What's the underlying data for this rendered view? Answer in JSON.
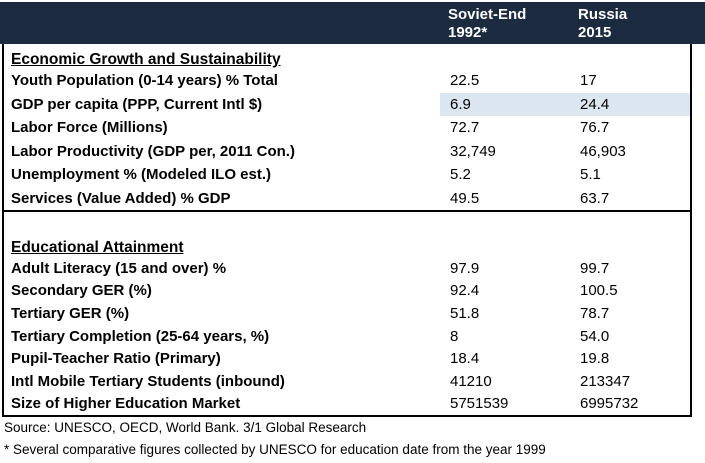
{
  "chart_data": {
    "type": "table",
    "col_headers": [
      {
        "line1": "Soviet-End",
        "line2": "1992*"
      },
      {
        "line1": "Russia",
        "line2": "2015"
      }
    ],
    "sections": [
      {
        "title": "Economic Growth and Sustainability",
        "rows": [
          {
            "label": "Youth Population (0-14 years) % Total",
            "soviet_1992": "22.5",
            "russia_2015": "17"
          },
          {
            "label": "GDP per capita (PPP, Current Intl $)",
            "soviet_1992": "6.9",
            "russia_2015": "24.4",
            "highlighted": true
          },
          {
            "label": "Labor Force (Millions)",
            "soviet_1992": "72.7",
            "russia_2015": "76.7"
          },
          {
            "label": "Labor Productivity (GDP per, 2011 Con.)",
            "soviet_1992": "32,749",
            "russia_2015": "46,903"
          },
          {
            "label": "Unemployment % (Modeled ILO est.)",
            "soviet_1992": "5.2",
            "russia_2015": "5.1"
          },
          {
            "label": "Services (Value Added) % GDP",
            "soviet_1992": "49.5",
            "russia_2015": "63.7"
          }
        ]
      },
      {
        "title": "Educational Attainment",
        "rows": [
          {
            "label": "Adult Literacy (15 and over) %",
            "soviet_1992": "97.9",
            "russia_2015": "99.7"
          },
          {
            "label": "Secondary GER (%)",
            "soviet_1992": "92.4",
            "russia_2015": "100.5"
          },
          {
            "label": "Tertiary GER (%)",
            "soviet_1992": "51.8",
            "russia_2015": "78.7"
          },
          {
            "label": "Tertiary Completion (25-64 years, %)",
            "soviet_1992": "8",
            "russia_2015": "54.0"
          },
          {
            "label": "Pupil-Teacher Ratio (Primary)",
            "soviet_1992": "18.4",
            "russia_2015": "19.8"
          },
          {
            "label": "Intl Mobile Tertiary Students (inbound)",
            "soviet_1992": "41210",
            "russia_2015": "213347"
          },
          {
            "label": "Size of Higher Education Market",
            "soviet_1992": "5751539",
            "russia_2015": "6995732"
          }
        ]
      }
    ]
  },
  "footer": {
    "source": "Source: UNESCO, OECD, World Bank. 3/1 Global Research",
    "footnote": "* Several comparative figures collected by UNESCO for education date from the year 1999"
  },
  "colors": {
    "header_bg": "#1c2b40",
    "highlight_bg": "#dce6f1",
    "border": "#000000",
    "header_text": "#ffffff",
    "body_text": "#000000"
  }
}
